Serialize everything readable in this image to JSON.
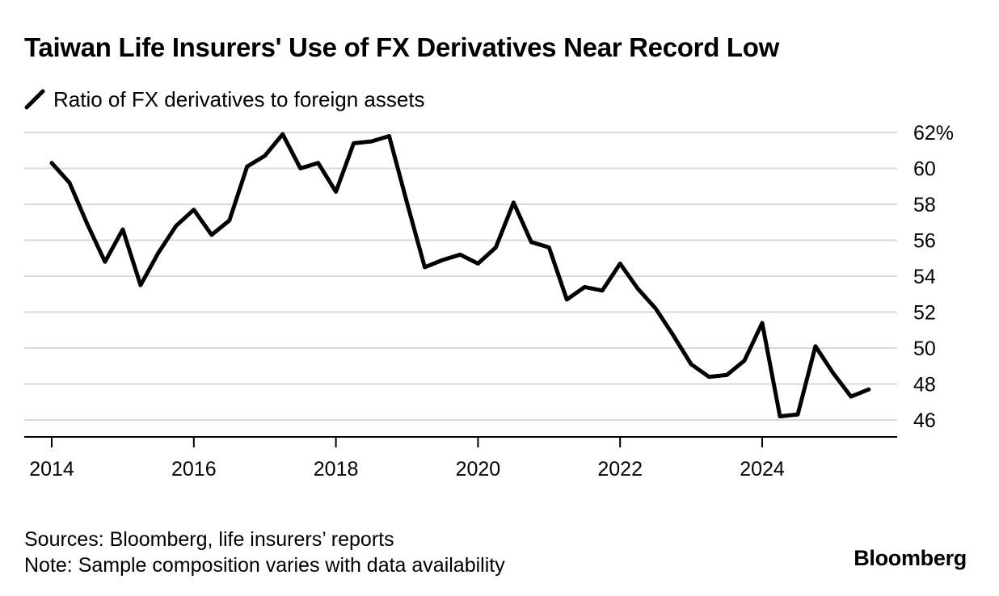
{
  "colors": {
    "line": "#000000",
    "grid": "#d9d9d9",
    "axis": "#000000",
    "background": "#ffffff"
  },
  "footer": {
    "sources": "Sources: Bloomberg, life insurers’ reports",
    "note": "Note: Sample composition varies with data availability"
  },
  "brand": "Bloomberg",
  "chart_data": {
    "type": "line",
    "title": "Taiwan Life Insurers' Use of FX Derivatives Near Record Low",
    "xlabel": "",
    "ylabel": "",
    "legend_placement": "top-left",
    "grid": true,
    "y_axis_side": "right",
    "xlim": [
      2013.6,
      2026.0
    ],
    "ylim": [
      45,
      62
    ],
    "x_ticks": [
      2014,
      2016,
      2018,
      2020,
      2022,
      2024
    ],
    "x_tick_labels": [
      "2014",
      "2016",
      "2018",
      "2020",
      "2022",
      "2024"
    ],
    "y_ticks": [
      46,
      48,
      50,
      52,
      54,
      56,
      58,
      60,
      62
    ],
    "y_tick_labels": [
      "46",
      "48",
      "50",
      "52",
      "54",
      "56",
      "58",
      "60",
      "62%"
    ],
    "series": [
      {
        "name": "Ratio of FX derivatives to foreign assets",
        "x": [
          2014.0,
          2014.25,
          2014.5,
          2014.75,
          2015.0,
          2015.25,
          2015.5,
          2015.75,
          2016.0,
          2016.25,
          2016.5,
          2016.75,
          2017.0,
          2017.25,
          2017.5,
          2017.75,
          2018.0,
          2018.25,
          2018.5,
          2018.75,
          2019.0,
          2019.25,
          2019.5,
          2019.75,
          2020.0,
          2020.25,
          2020.5,
          2020.75,
          2021.0,
          2021.25,
          2021.5,
          2021.75,
          2022.0,
          2022.25,
          2022.5,
          2022.75,
          2023.0,
          2023.25,
          2023.5,
          2023.75,
          2024.0,
          2024.25,
          2024.5,
          2024.75,
          2025.0,
          2025.25,
          2025.5
        ],
        "values": [
          60.3,
          59.2,
          56.9,
          54.8,
          56.6,
          53.5,
          55.3,
          56.8,
          57.7,
          56.3,
          57.1,
          60.1,
          60.7,
          61.9,
          60.0,
          60.3,
          58.7,
          61.4,
          61.5,
          61.8,
          58.1,
          54.5,
          54.9,
          55.2,
          54.7,
          55.6,
          58.1,
          55.9,
          55.6,
          52.7,
          53.4,
          53.2,
          54.7,
          53.3,
          52.2,
          50.7,
          49.1,
          48.4,
          48.5,
          49.3,
          51.4,
          46.2,
          46.3,
          50.1,
          48.6,
          47.3,
          47.7
        ]
      }
    ]
  }
}
